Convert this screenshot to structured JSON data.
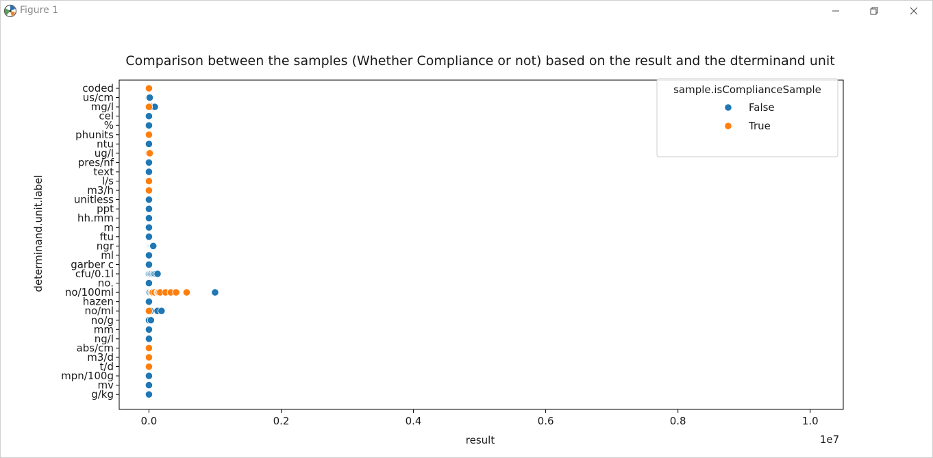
{
  "window": {
    "title": "Figure 1",
    "icon": "matplotlib-icon",
    "controls": [
      "minimize-icon",
      "maximize-icon",
      "close-icon"
    ]
  },
  "colors": {
    "False": "#1f77b4",
    "True": "#ff7f0e"
  },
  "chart_data": {
    "type": "scatter",
    "title": "Comparison between the samples (Whether Compliance or not) based on the result and the dterminand unit",
    "xlabel": "result",
    "ylabel": "determinand.unit.label",
    "x_offset_label": "1e7",
    "xlim": [
      -0.045,
      1.05
    ],
    "xticks": [
      0.0,
      0.2,
      0.4,
      0.6,
      0.8,
      1.0
    ],
    "xtick_labels": [
      "0.0",
      "0.2",
      "0.4",
      "0.6",
      "0.8",
      "1.0"
    ],
    "categories": [
      "coded",
      "us/cm",
      "mg/l",
      "cel",
      "%",
      "phunits",
      "ntu",
      "ug/l",
      "pres/nf",
      "text",
      "l/s",
      "m3/h",
      "unitless",
      "ppt",
      "hh.mm",
      "m",
      "ftu",
      "ngr",
      "ml",
      "garber c",
      "cfu/0.1l",
      "no.",
      "no/100ml",
      "hazen",
      "no/ml",
      "no/g",
      "mm",
      "ng/l",
      "abs/cm",
      "m3/d",
      "t/d",
      "mpn/100g",
      "mv",
      "g/kg"
    ],
    "legend": {
      "title": "sample.isComplianceSample",
      "position": "upper right",
      "entries": [
        "False",
        "True"
      ]
    },
    "grid": false,
    "series": [
      {
        "name": "False",
        "points": [
          {
            "y": "us/cm",
            "x": [
              0,
              0.001,
              0.0012
            ]
          },
          {
            "y": "mg/l",
            "x": [
              0,
              0.001,
              0.0033,
              0.0089
            ]
          },
          {
            "y": "cel",
            "x": [
              0
            ]
          },
          {
            "y": "%",
            "x": [
              0
            ]
          },
          {
            "y": "ntu",
            "x": [
              0
            ]
          },
          {
            "y": "pres/nf",
            "x": [
              0
            ]
          },
          {
            "y": "text",
            "x": [
              0
            ]
          },
          {
            "y": "unitless",
            "x": [
              0
            ]
          },
          {
            "y": "ppt",
            "x": [
              0
            ]
          },
          {
            "y": "hh.mm",
            "x": [
              0
            ]
          },
          {
            "y": "m",
            "x": [
              0
            ]
          },
          {
            "y": "ftu",
            "x": [
              0
            ]
          },
          {
            "y": "ngr",
            "x": [
              0.0003,
              0.001,
              0.0017,
              0.0027,
              0.0035,
              0.0042,
              0.0053,
              0.006,
              0.0065
            ]
          },
          {
            "y": "ml",
            "x": [
              0
            ]
          },
          {
            "y": "garber c",
            "x": [
              0
            ]
          },
          {
            "y": "cfu/0.1l",
            "x": [
              0,
              0.0015,
              0.0028,
              0.004,
              0.006,
              0.0073,
              0.009,
              0.011,
              0.013
            ]
          },
          {
            "y": "no.",
            "x": [
              0
            ]
          },
          {
            "y": "no/100ml",
            "x": [
              0,
              0.0005,
              0.0015,
              0.0034,
              0.0075,
              0.0095,
              0.042,
              0.1
            ]
          },
          {
            "y": "hazen",
            "x": [
              0
            ]
          },
          {
            "y": "no/ml",
            "x": [
              0.001,
              0.002,
              0.0025,
              0.013,
              0.019
            ]
          },
          {
            "y": "no/g",
            "x": [
              0,
              0.003
            ]
          },
          {
            "y": "mm",
            "x": [
              0
            ]
          },
          {
            "y": "ng/l",
            "x": [
              0
            ]
          },
          {
            "y": "mpn/100g",
            "x": [
              0
            ]
          },
          {
            "y": "mv",
            "x": [
              0
            ]
          },
          {
            "y": "g/kg",
            "x": [
              0
            ]
          }
        ]
      },
      {
        "name": "True",
        "points": [
          {
            "y": "coded",
            "x": [
              0
            ]
          },
          {
            "y": "mg/l",
            "x": [
              0
            ]
          },
          {
            "y": "phunits",
            "x": [
              0
            ]
          },
          {
            "y": "ug/l",
            "x": [
              0,
              0.0012
            ]
          },
          {
            "y": "l/s",
            "x": [
              0
            ]
          },
          {
            "y": "m3/h",
            "x": [
              0
            ]
          },
          {
            "y": "no/100ml",
            "x": [
              0.0045,
              0.0058,
              0.0085,
              0.013,
              0.014,
              0.015,
              0.017,
              0.025,
              0.033,
              0.041,
              0.057
            ]
          },
          {
            "y": "no/ml",
            "x": [
              0
            ]
          },
          {
            "y": "abs/cm",
            "x": [
              0
            ]
          },
          {
            "y": "m3/d",
            "x": [
              0
            ]
          },
          {
            "y": "t/d",
            "x": [
              0
            ]
          }
        ]
      }
    ]
  }
}
